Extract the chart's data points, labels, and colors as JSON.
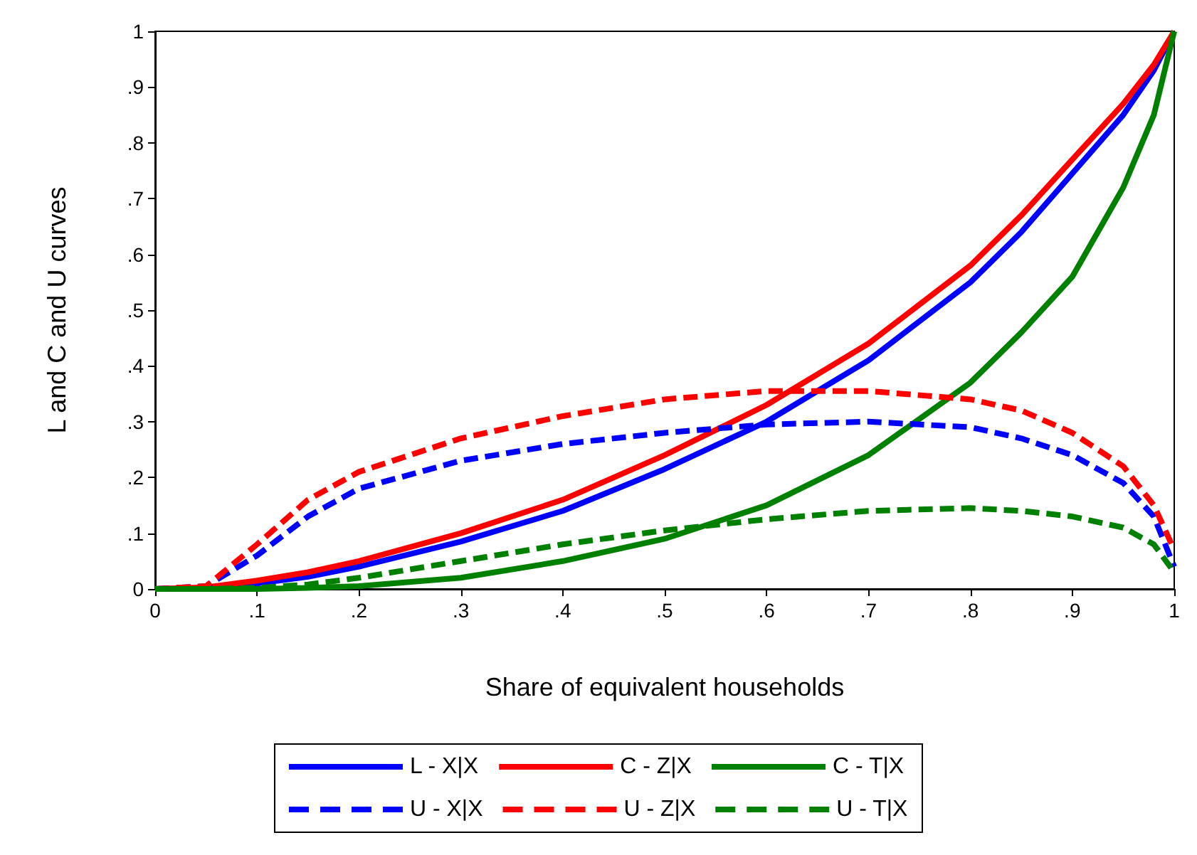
{
  "chart_data": {
    "type": "line",
    "xlabel": "Share of equivalent households",
    "ylabel": "L and C and U curves",
    "x": [
      0,
      0.05,
      0.1,
      0.15,
      0.2,
      0.3,
      0.4,
      0.5,
      0.6,
      0.7,
      0.8,
      0.85,
      0.9,
      0.95,
      0.98,
      1
    ],
    "series": [
      {
        "name": "L - X|X",
        "color": "#0000ff",
        "line_style": "solid",
        "values": [
          0,
          0.002,
          0.01,
          0.022,
          0.04,
          0.085,
          0.14,
          0.215,
          0.3,
          0.41,
          0.55,
          0.64,
          0.745,
          0.85,
          0.93,
          1
        ]
      },
      {
        "name": "C - Z|X",
        "color": "#ff0000",
        "line_style": "solid",
        "values": [
          0,
          0.003,
          0.015,
          0.03,
          0.05,
          0.1,
          0.16,
          0.24,
          0.33,
          0.44,
          0.58,
          0.67,
          0.77,
          0.87,
          0.94,
          1
        ]
      },
      {
        "name": "C - T|X",
        "color": "#008000",
        "line_style": "solid",
        "values": [
          0,
          0,
          0,
          0.002,
          0.005,
          0.02,
          0.05,
          0.09,
          0.15,
          0.24,
          0.37,
          0.46,
          0.56,
          0.72,
          0.85,
          1
        ]
      },
      {
        "name": "U - X|X",
        "color": "#0000ff",
        "line_style": "dashed",
        "values": [
          0,
          0.005,
          0.06,
          0.13,
          0.18,
          0.23,
          0.26,
          0.28,
          0.295,
          0.3,
          0.29,
          0.27,
          0.24,
          0.19,
          0.13,
          0.04
        ]
      },
      {
        "name": "U - Z|X",
        "color": "#ff0000",
        "line_style": "dashed",
        "values": [
          0,
          0.005,
          0.08,
          0.16,
          0.21,
          0.27,
          0.31,
          0.34,
          0.355,
          0.355,
          0.34,
          0.32,
          0.28,
          0.22,
          0.15,
          0.07
        ]
      },
      {
        "name": "U - T|X",
        "color": "#008000",
        "line_style": "dashed",
        "values": [
          0,
          0,
          0.002,
          0.008,
          0.02,
          0.05,
          0.08,
          0.105,
          0.125,
          0.14,
          0.145,
          0.14,
          0.13,
          0.11,
          0.08,
          0.03
        ]
      }
    ],
    "xlim": [
      0,
      1
    ],
    "ylim": [
      0,
      1
    ],
    "xticks": [
      0,
      {
        "value": 0.1,
        "label": ".1"
      },
      {
        "value": 0.2,
        "label": ".2"
      },
      {
        "value": 0.3,
        "label": ".3"
      },
      {
        "value": 0.4,
        "label": ".4"
      },
      {
        "value": 0.5,
        "label": ".5"
      },
      {
        "value": 0.6,
        "label": ".6"
      },
      {
        "value": 0.7,
        "label": ".7"
      },
      {
        "value": 0.8,
        "label": ".8"
      },
      {
        "value": 0.9,
        "label": ".9"
      },
      1
    ],
    "yticks": [
      0,
      {
        "value": 0.1,
        "label": ".1"
      },
      {
        "value": 0.2,
        "label": ".2"
      },
      {
        "value": 0.3,
        "label": ".3"
      },
      {
        "value": 0.4,
        "label": ".4"
      },
      {
        "value": 0.5,
        "label": ".5"
      },
      {
        "value": 0.6,
        "label": ".6"
      },
      {
        "value": 0.7,
        "label": ".7"
      },
      {
        "value": 0.8,
        "label": ".8"
      },
      {
        "value": 0.9,
        "label": ".9"
      },
      1
    ],
    "grid": false,
    "legend": "bottom",
    "marker": "none"
  }
}
